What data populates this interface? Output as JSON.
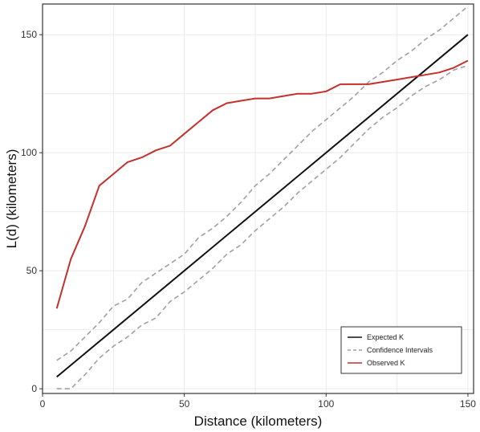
{
  "chart_data": {
    "type": "line",
    "title": "",
    "xlabel": "Distance (kilometers)",
    "ylabel": "L(d) (kilometers)",
    "xlim": [
      0,
      152
    ],
    "ylim": [
      -2,
      163
    ],
    "xticks": [
      0,
      50,
      100,
      150
    ],
    "yticks": [
      0,
      50,
      100,
      150
    ],
    "grid": true,
    "legend": "bottom-right",
    "series": [
      {
        "name": "Expected K",
        "color": "#111111",
        "dash": "solid",
        "x": [
          5,
          150
        ],
        "y": [
          5,
          150
        ]
      },
      {
        "name": "Confidence Intervals",
        "color": "#a0a0a0",
        "dash": "dashed",
        "x": [
          5,
          10,
          15,
          20,
          25,
          30,
          35,
          40,
          45,
          50,
          55,
          60,
          65,
          70,
          75,
          80,
          85,
          90,
          95,
          100,
          105,
          110,
          115,
          120,
          125,
          130,
          135,
          140,
          145,
          150
        ],
        "y": [
          12,
          16,
          22,
          28,
          35,
          38,
          45,
          49,
          53,
          57,
          64,
          68,
          73,
          79,
          86,
          91,
          97,
          103,
          109,
          114,
          119,
          124,
          130,
          134,
          139,
          143,
          148,
          152,
          157,
          162
        ]
      },
      {
        "name": "",
        "color": "#a0a0a0",
        "dash": "dashed",
        "x": [
          5,
          10,
          15,
          20,
          25,
          30,
          35,
          40,
          45,
          50,
          55,
          60,
          65,
          70,
          75,
          80,
          85,
          90,
          95,
          100,
          105,
          110,
          115,
          120,
          125,
          130,
          135,
          140,
          145,
          150
        ],
        "y": [
          0,
          0,
          6,
          13,
          18,
          22,
          27,
          30,
          37,
          41,
          46,
          51,
          57,
          61,
          67,
          72,
          77,
          83,
          88,
          93,
          98,
          104,
          110,
          115,
          119,
          124,
          128,
          131,
          135,
          137
        ]
      },
      {
        "name": "Observed K",
        "color": "#c4302b",
        "dash": "solid",
        "x": [
          5,
          10,
          15,
          20,
          25,
          30,
          35,
          40,
          45,
          50,
          55,
          60,
          65,
          70,
          75,
          80,
          85,
          90,
          95,
          100,
          105,
          110,
          115,
          120,
          125,
          130,
          135,
          140,
          145,
          150
        ],
        "y": [
          34,
          55,
          69,
          86,
          91,
          96,
          98,
          101,
          103,
          108,
          113,
          118,
          121,
          122,
          123,
          123,
          124,
          125,
          125,
          126,
          129,
          129,
          129,
          130,
          131,
          132,
          133,
          134,
          136,
          139
        ]
      }
    ],
    "legend_entries": [
      {
        "label": "Expected K",
        "color": "#111111",
        "dash": "solid"
      },
      {
        "label": "Confidence Intervals",
        "color": "#a0a0a0",
        "dash": "dashed"
      },
      {
        "label": "Observed K",
        "color": "#c4302b",
        "dash": "solid"
      }
    ]
  }
}
